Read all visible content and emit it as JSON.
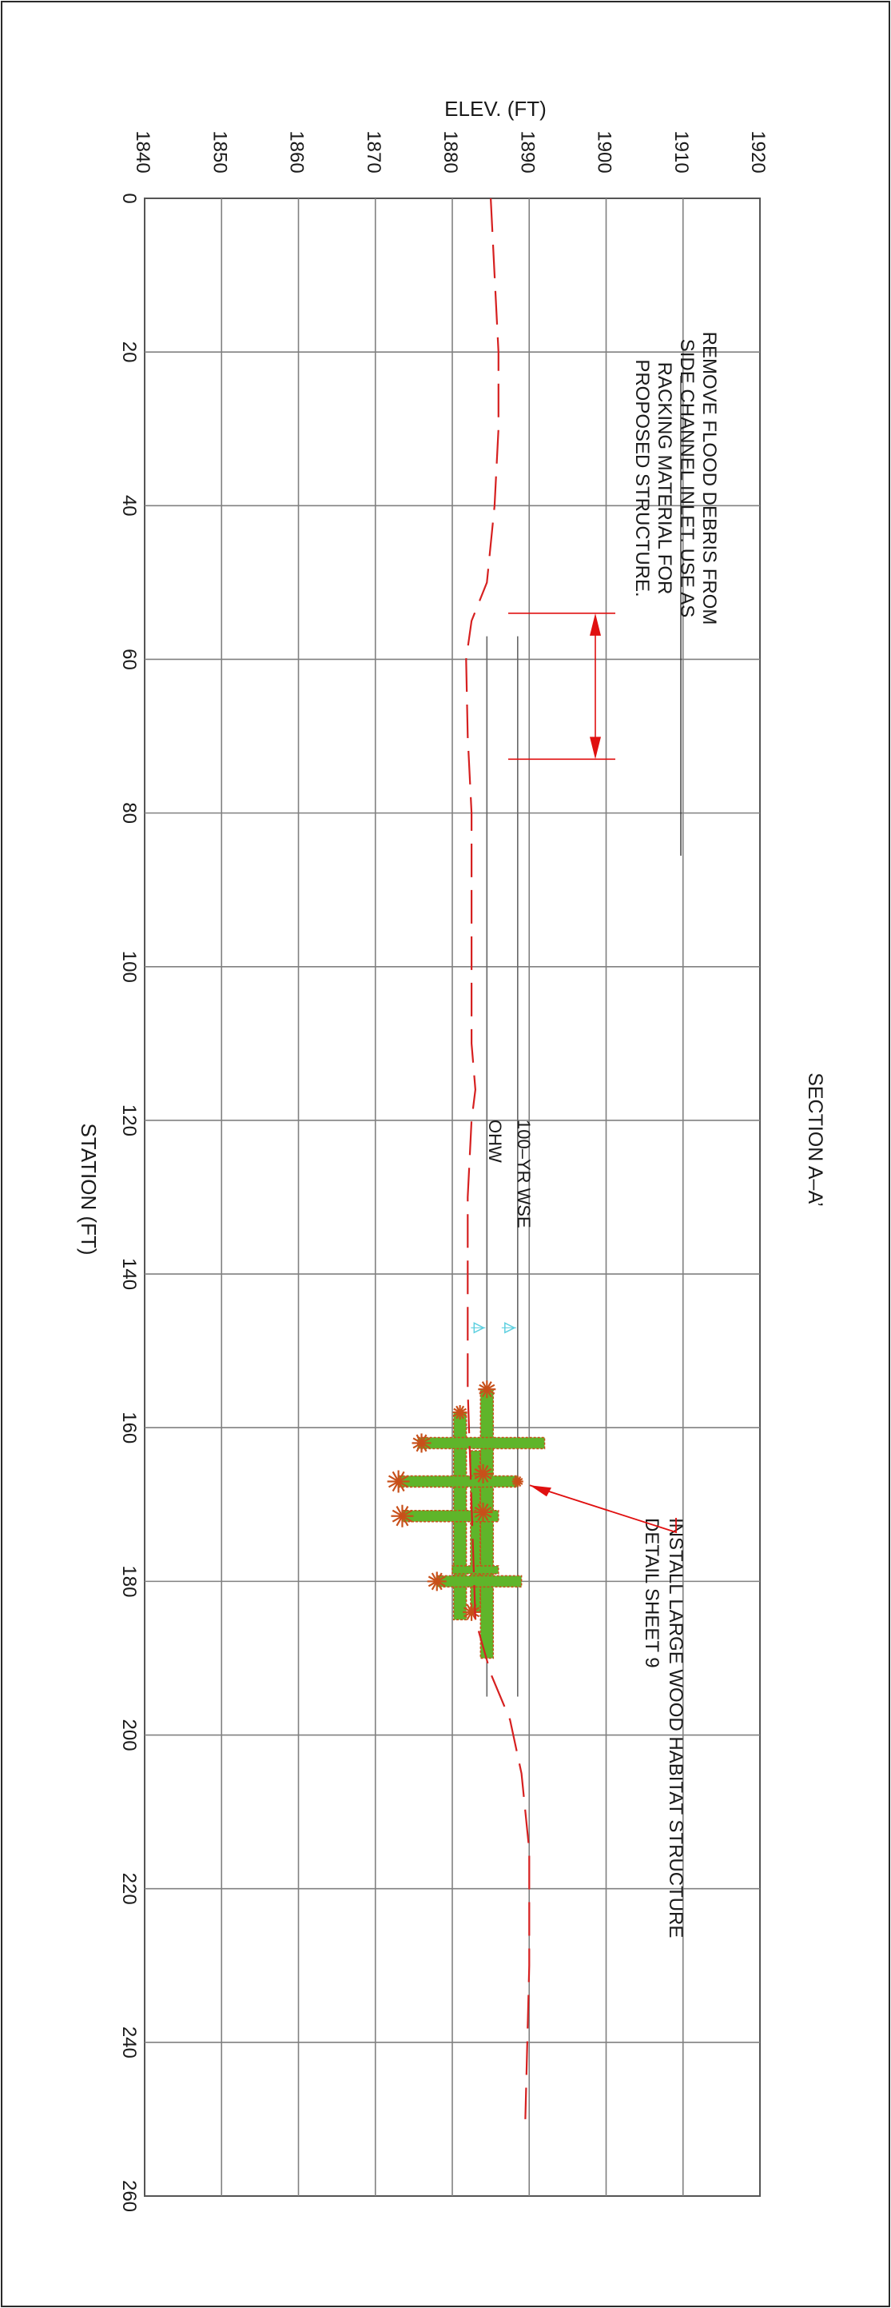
{
  "title": "SECTION A–A’",
  "axes": {
    "elevation_label": "ELEV. (FT)",
    "station_label": "STATION (FT)",
    "elevation_ticks": [
      "1840",
      "1850",
      "1860",
      "1870",
      "1880",
      "1890",
      "1900",
      "1910",
      "1920"
    ],
    "station_ticks": [
      "0",
      "20",
      "40",
      "60",
      "80",
      "100",
      "120",
      "140",
      "160",
      "180",
      "200",
      "220",
      "240",
      "260"
    ]
  },
  "annotations": {
    "debris_note": [
      "REMOVE FLOOD DEBRIS FROM",
      "SIDE CHANNEL INLET. USE AS",
      "RACKING MATERIAL FOR",
      "PROPOSED STRUCTURE."
    ],
    "structure_note": [
      "INSTALL LARGE WOOD HABITAT STRUCTURE",
      "DETAIL SHEET 9"
    ],
    "wse_label": "100–YR WSE",
    "ohw_label": "OHW"
  },
  "colors": {
    "grid": "#808080",
    "ground_dash": "#d62020",
    "leader": "#e01010",
    "wood_fill": "#5fb52a",
    "wood_edge": "#c8501a",
    "water_marker": "#5fd0e0"
  },
  "chart_data": {
    "type": "line",
    "orientation": "rotated-90-clockwise",
    "x_axis": {
      "label": "STATION (FT)",
      "range": [
        0,
        260
      ]
    },
    "y_axis": {
      "label": "ELEV. (FT)",
      "range": [
        1840,
        1920
      ]
    },
    "grid": true,
    "series": [
      {
        "style": "dashed",
        "points": [
          [
            0,
            1885
          ],
          [
            10,
            1885.5
          ],
          [
            20,
            1886
          ],
          [
            30,
            1886
          ],
          [
            40,
            1885.5
          ],
          [
            50,
            1884.5
          ],
          [
            55,
            1882.5
          ],
          [
            60,
            1881.8
          ],
          [
            70,
            1882
          ],
          [
            80,
            1882.5
          ],
          [
            90,
            1882.5
          ],
          [
            100,
            1882.5
          ],
          [
            110,
            1882.5
          ],
          [
            116,
            1883
          ],
          [
            120,
            1882.5
          ],
          [
            130,
            1882
          ],
          [
            140,
            1882
          ],
          [
            150,
            1882
          ],
          [
            155,
            1882
          ],
          [
            185,
            1883
          ],
          [
            192,
            1885
          ],
          [
            198,
            1887.5
          ],
          [
            205,
            1889
          ],
          [
            215,
            1890
          ],
          [
            230,
            1890
          ],
          [
            250,
            1889.5
          ]
        ]
      }
    ],
    "water_lines": [
      {
        "label": "100–YR WSE",
        "elevation": 1888.5,
        "station_range": [
          57,
          195
        ]
      },
      {
        "label": "OHW",
        "elevation": 1884.5,
        "station_range": [
          57,
          195
        ]
      }
    ],
    "callouts": [
      {
        "text": "REMOVE FLOOD DEBRIS FROM SIDE CHANNEL INLET. USE AS RACKING MATERIAL FOR PROPOSED STRUCTURE.",
        "station_range": [
          54,
          73
        ]
      },
      {
        "text": "INSTALL LARGE WOOD HABITAT STRUCTURE DETAIL SHEET 9",
        "station": 167.5
      }
    ]
  }
}
